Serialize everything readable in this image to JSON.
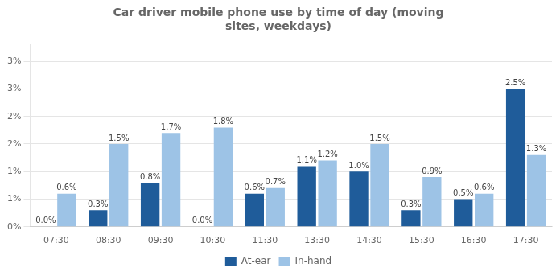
{
  "chart_data": {
    "type": "bar",
    "title": "Car driver mobile phone use by time of day (moving\nsites, weekdays)",
    "categories": [
      "07:30",
      "08:30",
      "09:30",
      "10:30",
      "11:30",
      "13:30",
      "14:30",
      "15:30",
      "16:30",
      "17:30"
    ],
    "series": [
      {
        "name": "At-ear",
        "color": "#1F5C9A",
        "values": [
          0.0,
          0.3,
          0.8,
          0.0,
          0.6,
          1.1,
          1.0,
          0.3,
          0.5,
          2.5
        ],
        "value_labels": [
          "0.0%",
          "0.3%",
          "0.8%",
          "0.0%",
          "0.6%",
          "1.1%",
          "1.0%",
          "0.3%",
          "0.5%",
          "2.5%"
        ]
      },
      {
        "name": "In-hand",
        "color": "#9DC3E6",
        "values": [
          0.6,
          1.5,
          1.7,
          1.8,
          0.7,
          1.2,
          1.5,
          0.9,
          0.6,
          1.3
        ],
        "value_labels": [
          "0.6%",
          "1.5%",
          "1.7%",
          "1.8%",
          "0.7%",
          "1.2%",
          "1.5%",
          "0.9%",
          "0.6%",
          "1.3%"
        ]
      }
    ],
    "ylim": [
      0,
      3.3
    ],
    "yticks": [
      {
        "value": 0,
        "label": "0%"
      },
      {
        "value": 0.5,
        "label": "1%"
      },
      {
        "value": 1.0,
        "label": "1%"
      },
      {
        "value": 1.5,
        "label": "2%"
      },
      {
        "value": 2.0,
        "label": "2%"
      },
      {
        "value": 2.5,
        "label": "3%"
      },
      {
        "value": 3.0,
        "label": "3%"
      }
    ],
    "grid": true,
    "legend": "bottom",
    "data_labels": true
  }
}
